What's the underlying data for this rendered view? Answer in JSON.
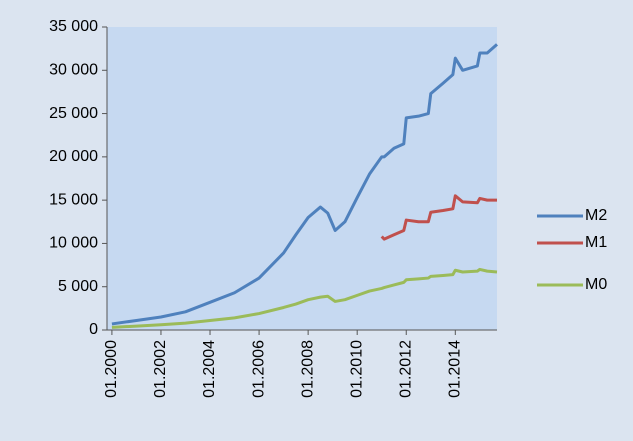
{
  "chart_data": {
    "type": "line",
    "x": [
      2000,
      2001,
      2002,
      2003,
      2004,
      2005,
      2006,
      2007,
      2007.5,
      2008,
      2008.5,
      2008.8,
      2009.1,
      2009.5,
      2010,
      2010.5,
      2011,
      2011.1,
      2011.5,
      2011.9,
      2012,
      2012.5,
      2012.9,
      2013,
      2013.5,
      2013.9,
      2014,
      2014.3,
      2014.9,
      2015,
      2015.3,
      2015.7
    ],
    "series": [
      {
        "name": "M2",
        "color": "#4f81bd",
        "values": [
          700,
          1100,
          1500,
          2100,
          3200,
          4300,
          6000,
          8900,
          11000,
          13000,
          14200,
          13500,
          11500,
          12500,
          15300,
          18000,
          20000,
          20000,
          21000,
          21500,
          24500,
          24700,
          25000,
          27300,
          28500,
          29500,
          31400,
          30000,
          30500,
          32000,
          32000,
          33000
        ]
      },
      {
        "name": "M1",
        "color": "#c0504d",
        "values": [
          null,
          null,
          null,
          null,
          null,
          null,
          null,
          null,
          null,
          null,
          null,
          null,
          null,
          null,
          null,
          null,
          10800,
          10500,
          11000,
          11500,
          12700,
          12500,
          12500,
          13600,
          13800,
          14000,
          15500,
          14800,
          14700,
          15200,
          15000,
          15000
        ]
      },
      {
        "name": "M0",
        "color": "#9bbb59",
        "values": [
          300,
          450,
          600,
          800,
          1100,
          1400,
          1900,
          2600,
          3000,
          3500,
          3800,
          3900,
          3300,
          3500,
          4000,
          4500,
          4800,
          4900,
          5200,
          5500,
          5800,
          5900,
          6000,
          6200,
          6300,
          6400,
          6900,
          6700,
          6800,
          7000,
          6800,
          6700
        ]
      }
    ],
    "xlim": [
      1999.8,
      2015.7
    ],
    "xticks": [
      {
        "value": 2000,
        "label": "01.2000"
      },
      {
        "value": 2002,
        "label": "01.2002"
      },
      {
        "value": 2004,
        "label": "01.2004"
      },
      {
        "value": 2006,
        "label": "01.2006"
      },
      {
        "value": 2008,
        "label": "01.2008"
      },
      {
        "value": 2010,
        "label": "01.2010"
      },
      {
        "value": 2012,
        "label": "01.2012"
      },
      {
        "value": 2014,
        "label": "01.2014"
      }
    ],
    "ylim": [
      0,
      35000
    ],
    "yticks": [
      0,
      {
        "value": 5000,
        "label": "5 000"
      },
      {
        "value": 10000,
        "label": "10 000"
      },
      {
        "value": 15000,
        "label": "15 000"
      },
      {
        "value": 20000,
        "label": "20 000"
      },
      {
        "value": 25000,
        "label": "25 000"
      },
      {
        "value": 30000,
        "label": "30 000"
      },
      {
        "value": 35000,
        "label": "35 000"
      }
    ],
    "grid": false,
    "legend": "right"
  }
}
